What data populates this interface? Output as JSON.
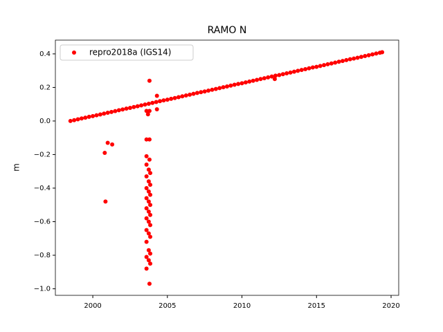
{
  "chart_data": {
    "type": "scatter",
    "title": "RAMO N",
    "y_label": "m",
    "xlim": [
      1997.49,
      2020.51
    ],
    "ylim": [
      -1.039,
      0.482
    ],
    "xticks": [
      2000,
      2005,
      2010,
      2015,
      2020
    ],
    "yticks": [
      {
        "value": -1.0,
        "label": "−1.0"
      },
      {
        "value": -0.8,
        "label": "−0.8"
      },
      {
        "value": -0.6,
        "label": "−0.6"
      },
      {
        "value": -0.4,
        "label": "−0.4"
      },
      {
        "value": -0.2,
        "label": "−0.2"
      },
      {
        "value": 0,
        "label": "0.0"
      },
      0.2,
      0.4
    ],
    "legend_position": "upper left",
    "series": [
      {
        "name": "repro2018a (IGS14)",
        "color": "#ff0000",
        "x": [
          1998.5,
          1998.75,
          1999,
          1999.25,
          1999.5,
          1999.75,
          2000,
          2000.25,
          2000.5,
          2000.75,
          2001,
          2001.25,
          2001.5,
          2001.75,
          2002,
          2002.25,
          2002.5,
          2002.75,
          2003,
          2003.25,
          2003.5,
          2003.75,
          2004,
          2004.25,
          2004.5,
          2004.75,
          2005,
          2005.25,
          2005.5,
          2005.75,
          2006,
          2006.25,
          2006.5,
          2006.75,
          2007,
          2007.25,
          2007.5,
          2007.75,
          2008,
          2008.25,
          2008.5,
          2008.75,
          2009,
          2009.25,
          2009.5,
          2009.75,
          2010,
          2010.25,
          2010.5,
          2010.75,
          2011,
          2011.25,
          2011.5,
          2011.75,
          2012,
          2012.25,
          2012.5,
          2012.75,
          2013,
          2013.25,
          2013.5,
          2013.75,
          2014,
          2014.25,
          2014.5,
          2014.75,
          2015,
          2015.25,
          2015.5,
          2015.75,
          2016,
          2016.25,
          2016.5,
          2016.75,
          2017,
          2017.25,
          2017.5,
          2017.75,
          2018,
          2018.25,
          2018.5,
          2018.75,
          2019,
          2019.25,
          2019.4,
          2000.8,
          2001.0,
          2001.3,
          2000.85,
          2003.8,
          2004.3,
          2004.3,
          2003.6,
          2003.8,
          2003.7,
          2003.6,
          2003.8,
          2003.6,
          2003.8,
          2012.2,
          2003.6,
          2003.75,
          2003.85,
          2003.6,
          2003.75,
          2003.85,
          2003.6,
          2003.75,
          2003.85,
          2003.6,
          2003.75,
          2003.85,
          2003.6,
          2003.75,
          2003.85,
          2003.6,
          2003.75,
          2003.85,
          2003.6,
          2003.75,
          2003.85,
          2003.6,
          2003.75,
          2003.85,
          2003.6,
          2003.75,
          2003.85,
          2003.6,
          2003.8
        ],
        "values": [
          0,
          0.005,
          0.01,
          0.015,
          0.02,
          0.025,
          0.029,
          0.034,
          0.039,
          0.044,
          0.049,
          0.054,
          0.059,
          0.064,
          0.069,
          0.074,
          0.078,
          0.083,
          0.088,
          0.093,
          0.098,
          0.103,
          0.108,
          0.113,
          0.118,
          0.123,
          0.127,
          0.132,
          0.137,
          0.142,
          0.147,
          0.152,
          0.157,
          0.162,
          0.167,
          0.172,
          0.176,
          0.181,
          0.186,
          0.191,
          0.196,
          0.201,
          0.206,
          0.211,
          0.216,
          0.221,
          0.225,
          0.23,
          0.235,
          0.24,
          0.245,
          0.25,
          0.255,
          0.26,
          0.265,
          0.27,
          0.274,
          0.279,
          0.284,
          0.289,
          0.294,
          0.299,
          0.304,
          0.309,
          0.314,
          0.319,
          0.323,
          0.328,
          0.333,
          0.338,
          0.343,
          0.348,
          0.353,
          0.358,
          0.363,
          0.368,
          0.372,
          0.377,
          0.382,
          0.387,
          0.392,
          0.397,
          0.402,
          0.407,
          0.41,
          -0.19,
          -0.13,
          -0.14,
          -0.48,
          0.24,
          0.15,
          0.07,
          0.06,
          0.06,
          0.04,
          -0.11,
          -0.11,
          -0.21,
          -0.23,
          0.25,
          -0.26,
          -0.29,
          -0.31,
          -0.33,
          -0.36,
          -0.38,
          -0.4,
          -0.42,
          -0.44,
          -0.46,
          -0.48,
          -0.5,
          -0.52,
          -0.54,
          -0.56,
          -0.58,
          -0.6,
          -0.62,
          -0.65,
          -0.67,
          -0.69,
          -0.72,
          -0.77,
          -0.79,
          -0.81,
          -0.83,
          -0.85,
          -0.88,
          -0.97
        ]
      }
    ]
  }
}
